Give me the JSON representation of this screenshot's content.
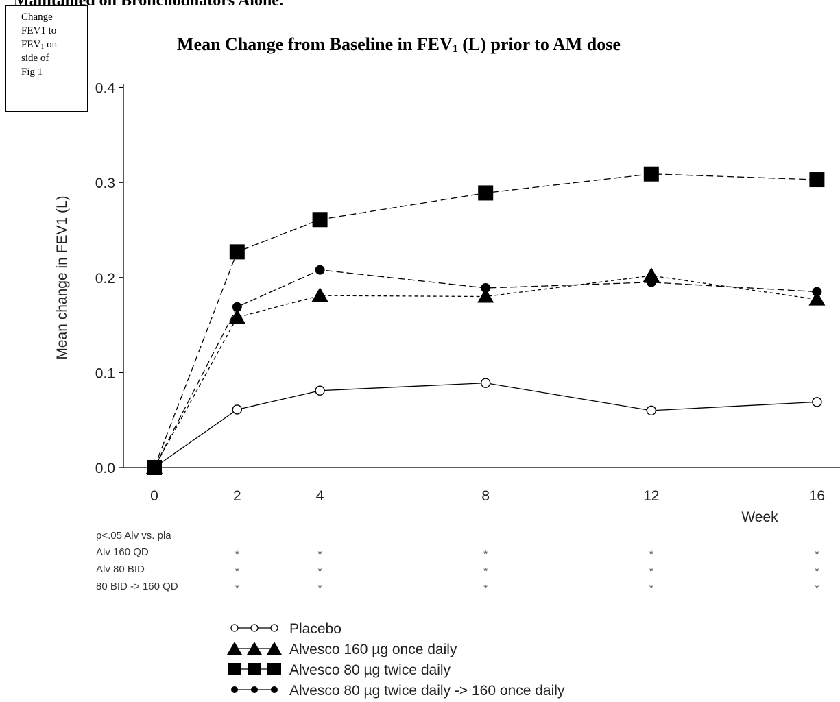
{
  "page": {
    "top_cut_text": "Maintained on Bronchodilators Alone.",
    "note_lines": [
      "Change",
      "FEV1 to",
      "FEV",
      "1",
      " on",
      "side of",
      "Fig 1"
    ]
  },
  "chart_data": {
    "type": "line",
    "title_main": "Mean Change from Baseline in FEV",
    "title_sub": "1",
    "title_end": " (L) prior to AM dose",
    "ylabel": "Mean change in FEV1 (L)",
    "xlabel": "Week",
    "x": [
      0,
      2,
      4,
      8,
      12,
      16
    ],
    "x_tick_labels": [
      "0",
      "2",
      "4",
      "8",
      "12",
      "16"
    ],
    "ylim": [
      0.0,
      0.4
    ],
    "y_tick_labels": [
      "0.0",
      "0.1",
      "0.2",
      "0.3",
      "0.4"
    ],
    "y_ticks": [
      0.0,
      0.1,
      0.2,
      0.3,
      0.4
    ],
    "grid": false,
    "series": [
      {
        "name": "Placebo",
        "marker": "circle-open",
        "dash": "solid",
        "values": [
          0.0,
          0.061,
          0.081,
          0.089,
          0.06,
          0.069
        ]
      },
      {
        "name": "Alvesco 160 µg once daily",
        "marker": "triangle",
        "dash": "short",
        "values": [
          0.0,
          0.158,
          0.181,
          0.18,
          0.202,
          0.177
        ]
      },
      {
        "name": "Alvesco 80 µg twice daily",
        "marker": "square",
        "dash": "long",
        "values": [
          0.0,
          0.227,
          0.261,
          0.289,
          0.309,
          0.303
        ]
      },
      {
        "name": "Alvesco 80 µg twice daily -> 160 once daily",
        "marker": "circle-filled",
        "dash": "long",
        "values": [
          0.0,
          0.169,
          0.208,
          0.189,
          0.195,
          0.185
        ]
      }
    ],
    "significance": {
      "header": "p<.05 Alv vs. pla",
      "rows": [
        {
          "label": "Alv 160 QD",
          "marks": [
            "*",
            "*",
            "*",
            "*",
            "*"
          ]
        },
        {
          "label": "Alv 80 BID",
          "marks": [
            "*",
            "*",
            "*",
            "*",
            "*"
          ]
        },
        {
          "label": "80 BID -> 160 QD",
          "marks": [
            "*",
            "*",
            "*",
            "*",
            "*"
          ]
        }
      ],
      "weeks": [
        2,
        4,
        8,
        12,
        16
      ]
    },
    "legend_position": "bottom-center"
  }
}
